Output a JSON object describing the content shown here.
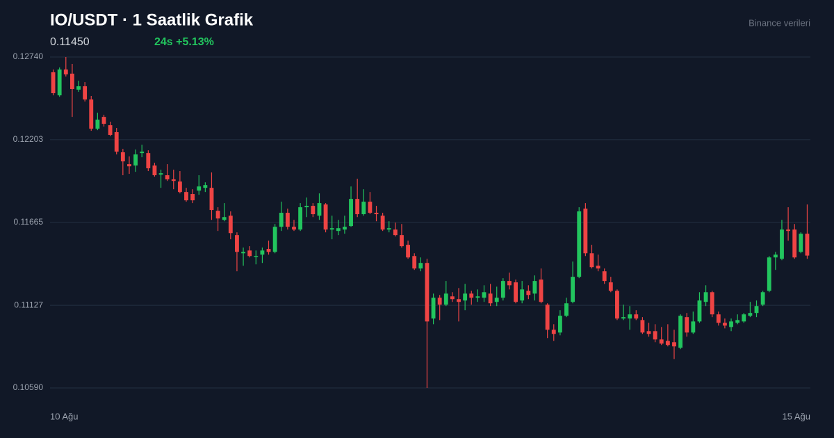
{
  "chart_data": {
    "type": "candlestick",
    "title": "IO/USDT · 1 Saatlik Grafik",
    "price": "0.11450",
    "change": "24s +5.13%",
    "source": "Binance verileri",
    "up_color": "#22c55e",
    "down_color": "#ef4444",
    "grid": true,
    "ylim": [
      0.1059,
      0.1274
    ],
    "yticks": [
      {
        "value": 0.1059,
        "label": "0.10590"
      },
      0.11127,
      0.11665,
      0.12203,
      {
        "value": 0.1274,
        "label": "0.12740"
      }
    ],
    "categories": [
      "10 Ağu",
      null,
      null,
      null,
      null,
      null,
      null,
      null,
      null,
      null,
      null,
      null,
      null,
      null,
      null,
      null,
      null,
      null,
      null,
      null,
      null,
      null,
      null,
      null,
      null,
      null,
      null,
      null,
      null,
      null,
      null,
      null,
      null,
      null,
      null,
      null,
      null,
      null,
      null,
      null,
      null,
      null,
      null,
      null,
      null,
      null,
      null,
      null,
      null,
      null,
      null,
      null,
      null,
      null,
      null,
      null,
      null,
      null,
      null,
      null,
      null,
      null,
      null,
      null,
      null,
      null,
      null,
      null,
      null,
      null,
      null,
      null,
      null,
      null,
      null,
      null,
      null,
      null,
      null,
      null,
      null,
      null,
      null,
      null,
      null,
      null,
      null,
      null,
      null,
      null,
      null,
      null,
      null,
      null,
      null,
      null,
      null,
      null,
      null,
      null,
      null,
      null,
      null,
      null,
      null,
      null,
      null,
      null,
      null,
      null,
      null,
      null,
      null,
      null,
      null,
      null,
      null,
      null,
      null,
      "15 Ağu"
    ],
    "open": [
      0.12641,
      0.12491,
      0.12659,
      0.12632,
      0.12528,
      0.1255,
      0.12464,
      0.12274,
      0.12351,
      0.12297,
      0.12252,
      0.12121,
      0.12044,
      0.12035,
      0.12116,
      0.12116,
      0.12035,
      0.11976,
      0.11972,
      0.11945,
      0.11931,
      0.11863,
      0.1185,
      0.11872,
      0.1189,
      0.1189,
      0.11741,
      0.11682,
      0.11709,
      0.11583,
      0.11465,
      0.11483,
      0.11443,
      0.11456,
      0.11493,
      0.11474,
      0.11637,
      0.11728,
      0.11637,
      0.11619,
      0.11764,
      0.11773,
      0.11709,
      0.11782,
      0.11619,
      0.1161,
      0.11619,
      0.11642,
      0.11818,
      0.11719,
      0.118,
      0.11728,
      0.11709,
      0.11619,
      0.11619,
      0.11583,
      0.1152,
      0.11447,
      0.11366,
      0.11402,
      0.11041,
      0.11176,
      0.11131,
      0.11185,
      0.11167,
      0.11158,
      0.11203,
      0.11176,
      0.11176,
      0.11203,
      0.11149,
      0.11176,
      0.11285,
      0.11276,
      0.11158,
      0.11221,
      0.11203,
      0.11294,
      0.11131,
      0.10968,
      0.1095,
      0.11059,
      0.11149,
      0.11312,
      0.11755,
      0.11465,
      0.11384,
      0.11348,
      0.11276,
      0.11221,
      0.11041,
      0.11041,
      0.11068,
      0.11031,
      0.10959,
      0.10959,
      0.10905,
      0.10896,
      0.10887,
      0.10851,
      0.1105,
      0.1095,
      0.11022,
      0.11149,
      0.11212,
      0.11068,
      0.11013,
      0.10986,
      0.11013,
      0.11022,
      0.11059,
      0.11077,
      0.11131,
      0.11221,
      0.11438,
      0.11429,
      0.11619,
      0.11619,
      0.11474,
      0.11592
    ],
    "high": [
      0.12659,
      0.12672,
      0.1274,
      0.12695,
      0.12586,
      0.12577,
      0.12487,
      0.12378,
      0.12365,
      0.1232,
      0.12279,
      0.12143,
      0.12094,
      0.12139,
      0.1217,
      0.12134,
      0.12053,
      0.12008,
      0.12044,
      0.12008,
      0.11999,
      0.1189,
      0.11881,
      0.11972,
      0.11926,
      0.1199,
      0.11764,
      0.11791,
      0.11737,
      0.11601,
      0.11502,
      0.11511,
      0.11483,
      0.11502,
      0.11547,
      0.11655,
      0.118,
      0.11755,
      0.11682,
      0.11791,
      0.11827,
      0.11791,
      0.11854,
      0.11791,
      0.11709,
      0.11682,
      0.11709,
      0.11899,
      0.11949,
      0.11881,
      0.11863,
      0.11773,
      0.11728,
      0.11673,
      0.11664,
      0.11655,
      0.11547,
      0.11465,
      0.11438,
      0.11429,
      0.11203,
      0.11194,
      0.11285,
      0.11212,
      0.11239,
      0.11266,
      0.11221,
      0.1123,
      0.11257,
      0.11266,
      0.11248,
      0.11303,
      0.11339,
      0.11294,
      0.11285,
      0.11257,
      0.11321,
      0.11366,
      0.1114,
      0.11004,
      0.11095,
      0.11176,
      0.11411,
      0.11764,
      0.11791,
      0.1152,
      0.11456,
      0.11366,
      0.11312,
      0.1123,
      0.11131,
      0.11122,
      0.11095,
      0.1105,
      0.11013,
      0.11004,
      0.10986,
      0.11004,
      0.10968,
      0.11068,
      0.11077,
      0.11086,
      0.11212,
      0.11257,
      0.11221,
      0.11086,
      0.11041,
      0.11041,
      0.11068,
      0.11077,
      0.11149,
      0.11158,
      0.11221,
      0.11447,
      0.11474,
      0.11682,
      0.11764,
      0.11655,
      0.11601,
      0.11782
    ],
    "low": [
      0.12491,
      0.12482,
      0.12613,
      0.12351,
      0.12514,
      0.12451,
      0.12261,
      0.12265,
      0.12288,
      0.12225,
      0.12107,
      0.11972,
      0.11981,
      0.11994,
      0.12089,
      0.11999,
      0.11963,
      0.1189,
      0.11935,
      0.11881,
      0.11854,
      0.118,
      0.11791,
      0.11845,
      0.11863,
      0.11682,
      0.1161,
      0.11673,
      0.11556,
      0.11348,
      0.11384,
      0.11438,
      0.11393,
      0.11402,
      0.11456,
      0.11465,
      0.1161,
      0.11619,
      0.1161,
      0.1161,
      0.117,
      0.117,
      0.11682,
      0.11601,
      0.11556,
      0.11583,
      0.11592,
      0.11637,
      0.117,
      0.11709,
      0.11719,
      0.11673,
      0.1161,
      0.11601,
      0.11574,
      0.11502,
      0.11429,
      0.11357,
      0.11348,
      0.1059,
      0.11004,
      0.11031,
      0.11122,
      0.11149,
      0.11022,
      0.11095,
      0.11131,
      0.11149,
      0.11149,
      0.11122,
      0.11122,
      0.11158,
      0.1123,
      0.1114,
      0.1114,
      0.11167,
      0.11158,
      0.1114,
      0.10914,
      0.10896,
      0.10932,
      0.1105,
      0.1114,
      0.11303,
      0.11447,
      0.11366,
      0.11348,
      0.11266,
      0.11212,
      0.11031,
      0.11031,
      0.10968,
      0.11031,
      0.10941,
      0.10923,
      0.10887,
      0.10869,
      0.1086,
      0.10778,
      0.10842,
      0.10923,
      0.10941,
      0.11013,
      0.11122,
      0.1105,
      0.10995,
      0.10977,
      0.10959,
      0.11004,
      0.11013,
      0.1105,
      0.1105,
      0.11122,
      0.11212,
      0.11357,
      0.1142,
      0.11547,
      0.11429,
      0.11465,
      0.11429
    ],
    "close": [
      0.12505,
      0.12659,
      0.12627,
      0.12532,
      0.1255,
      0.12464,
      0.12274,
      0.12333,
      0.12306,
      0.12234,
      0.12125,
      0.12062,
      0.1203,
      0.12107,
      0.12125,
      0.12017,
      0.11972,
      0.11985,
      0.11945,
      0.11935,
      0.11863,
      0.11809,
      0.11809,
      0.11899,
      0.11908,
      0.11746,
      0.11691,
      0.117,
      0.11596,
      0.11474,
      0.11474,
      0.11447,
      0.11447,
      0.11483,
      0.11474,
      0.11637,
      0.11728,
      0.11637,
      0.11619,
      0.11764,
      0.11773,
      0.11719,
      0.11791,
      0.11619,
      0.11628,
      0.11628,
      0.11637,
      0.11818,
      0.11719,
      0.118,
      0.11728,
      0.11719,
      0.11619,
      0.11628,
      0.11583,
      0.11511,
      0.11438,
      0.11366,
      0.11402,
      0.11022,
      0.11176,
      0.11131,
      0.11203,
      0.11167,
      0.11149,
      0.11203,
      0.11176,
      0.11185,
      0.11212,
      0.1114,
      0.11176,
      0.11285,
      0.11257,
      0.11149,
      0.1123,
      0.11194,
      0.11285,
      0.11149,
      0.10968,
      0.10941,
      0.11059,
      0.1114,
      0.11312,
      0.11737,
      0.11465,
      0.11375,
      0.11366,
      0.11285,
      0.11221,
      0.11041,
      0.1105,
      0.11068,
      0.11041,
      0.1095,
      0.10941,
      0.10905,
      0.10878,
      0.10869,
      0.1086,
      0.11059,
      0.1095,
      0.11022,
      0.11158,
      0.11212,
      0.11068,
      0.11013,
      0.10995,
      0.11022,
      0.11031,
      0.11068,
      0.11077,
      0.11122,
      0.11212,
      0.11438,
      0.11456,
      0.11619,
      0.1161,
      0.11438,
      0.11592,
      0.1145
    ]
  }
}
